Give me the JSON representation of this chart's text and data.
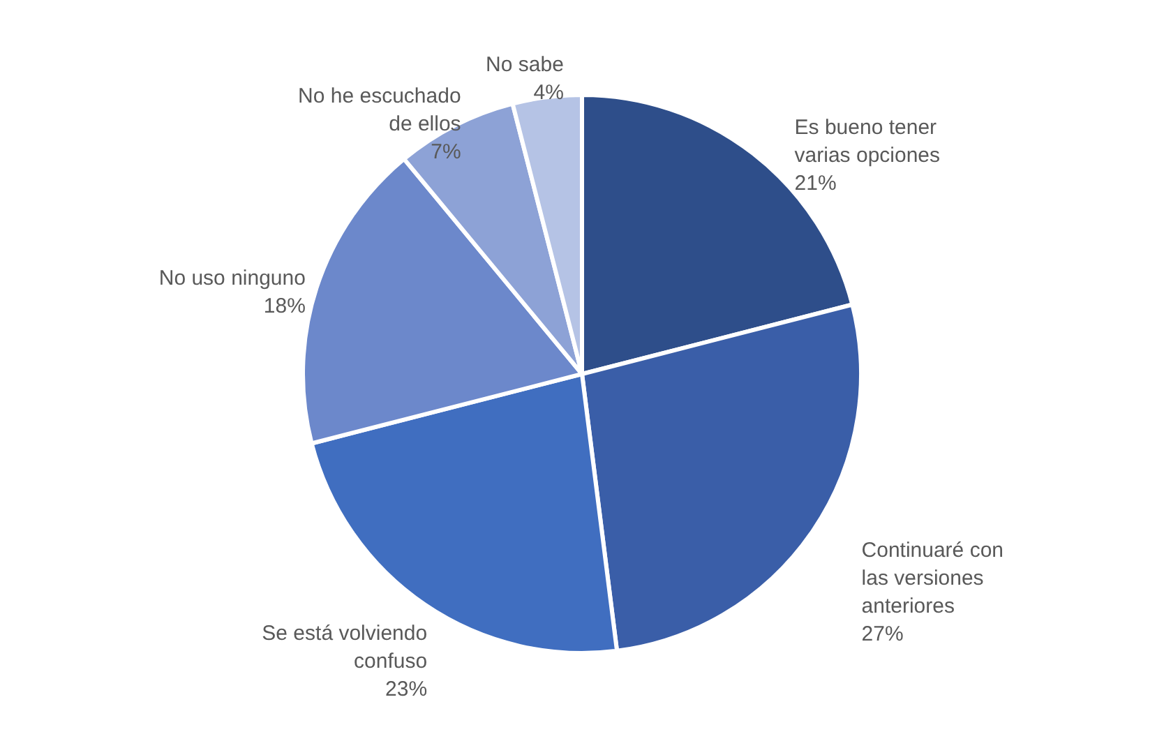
{
  "chart_data": {
    "type": "pie",
    "categories": [
      "Es bueno tener varias opciones",
      "Continuaré con las versiones anteriores",
      "Se está volviendo confuso",
      "No uso ninguno",
      "No he escuchado de ellos",
      "No sabe"
    ],
    "values": [
      21,
      27,
      23,
      18,
      7,
      4
    ],
    "value_labels": [
      "21%",
      "27%",
      "23%",
      "18%",
      "7%",
      "4%"
    ],
    "colors": [
      "#2e4e8a",
      "#3a5ea8",
      "#406ec0",
      "#6c88cb",
      "#8da2d6",
      "#b5c3e5"
    ]
  }
}
